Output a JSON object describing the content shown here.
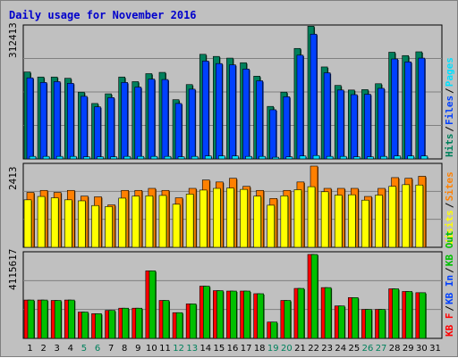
{
  "colors": {
    "background": "#c0c0c0",
    "title": "#0000cc",
    "hits": "#00805c",
    "files": "#0040ff",
    "pages": "#00e0ff",
    "visits": "#ffff00",
    "sites": "#ff8000",
    "kb_in": "#00c000",
    "kb_out": "#ff0000",
    "day_weekday": "#000000",
    "day_weekend": "#00805c"
  },
  "chart_data": {
    "type": "bar",
    "title": "Daily usage for November 2016",
    "categories": [
      "1",
      "2",
      "3",
      "4",
      "5",
      "6",
      "7",
      "8",
      "9",
      "10",
      "11",
      "12",
      "13",
      "14",
      "15",
      "16",
      "17",
      "18",
      "19",
      "20",
      "21",
      "22",
      "23",
      "24",
      "25",
      "26",
      "27",
      "28",
      "29",
      "30",
      "31"
    ],
    "weekend_days": [
      "5",
      "6",
      "12",
      "13",
      "19",
      "20",
      "26",
      "27"
    ],
    "panels": [
      {
        "ymax_label": "312413",
        "ymax": 312413,
        "legend": [
          {
            "label": "Hits",
            "color": "#00805c"
          },
          {
            "label": "/",
            "color": "#000000"
          },
          {
            "label": "Files",
            "color": "#0040ff"
          },
          {
            "label": "/",
            "color": "#000000"
          },
          {
            "label": "Pages",
            "color": "#00e0ff"
          }
        ],
        "series": [
          {
            "name": "Hits",
            "color": "#00805c",
            "values": [
              207000,
              195000,
              195000,
              192000,
              159000,
              132000,
              155000,
              195000,
              184000,
              203000,
              206000,
              141000,
              177000,
              249000,
              244000,
              240000,
              229000,
              197000,
              125000,
              159000,
              263000,
              316000,
              219000,
              175000,
              164000,
              165000,
              179000,
              254000,
              246000,
              255000,
              0
            ]
          },
          {
            "name": "Files",
            "color": "#0040ff",
            "values": [
              193000,
              182000,
              184000,
              180000,
              149000,
              124000,
              146000,
              182000,
              171000,
              190000,
              189000,
              132000,
              166000,
              233000,
              227000,
              224000,
              214000,
              186000,
              117000,
              148000,
              247000,
              297000,
              205000,
              164000,
              153000,
              154000,
              168000,
              238000,
              231000,
              240000,
              0
            ]
          },
          {
            "name": "Pages",
            "color": "#00e0ff",
            "values": [
              6000,
              6000,
              6000,
              6000,
              5000,
              5000,
              5000,
              6000,
              6000,
              6000,
              6000,
              5000,
              6000,
              7000,
              7000,
              7000,
              6000,
              6000,
              4000,
              5000,
              7000,
              8000,
              6000,
              6000,
              5000,
              5000,
              6000,
              7000,
              7000,
              7000,
              0
            ]
          }
        ]
      },
      {
        "ymax_label": "2413",
        "ymax": 2413,
        "legend": [
          {
            "label": "Visits",
            "color": "#ffff00"
          },
          {
            "label": "/",
            "color": "#000000"
          },
          {
            "label": "Sites",
            "color": "#ff8000"
          }
        ],
        "series": [
          {
            "name": "Sites",
            "color": "#ff8000",
            "values": [
              1630,
              1690,
              1630,
              1690,
              1520,
              1500,
              1260,
              1690,
              1690,
              1750,
              1690,
              1470,
              1750,
              2000,
              1940,
              2050,
              1810,
              1690,
              1450,
              1690,
              1940,
              2413,
              1750,
              1750,
              1750,
              1510,
              1750,
              2070,
              2050,
              2110,
              0
            ]
          },
          {
            "name": "Visits",
            "color": "#ffff00",
            "values": [
              1410,
              1510,
              1470,
              1410,
              1380,
              1240,
              1210,
              1460,
              1520,
              1530,
              1540,
              1280,
              1580,
              1700,
              1750,
              1760,
              1720,
              1520,
              1250,
              1530,
              1710,
              1800,
              1650,
              1550,
              1560,
              1400,
              1550,
              1810,
              1860,
              1850,
              0
            ]
          }
        ]
      },
      {
        "ymax_label": "4115617",
        "ymax": 4115617,
        "legend": [
          {
            "label": "KB F",
            "color": "#ff0000"
          },
          {
            "label": "/",
            "color": "#000000"
          },
          {
            "label": "KB In",
            "color": "#0040ff"
          },
          {
            "label": "/",
            "color": "#000000"
          },
          {
            "label": "KB Out",
            "color": "#00c000"
          }
        ],
        "series": [
          {
            "name": "KB F",
            "color": "#ff0000",
            "values": [
              1880000,
              1880000,
              1860000,
              1880000,
              1290000,
              1210000,
              1370000,
              1480000,
              1480000,
              3310000,
              1860000,
              1260000,
              1690000,
              2560000,
              2340000,
              2320000,
              2320000,
              2190000,
              800000,
              1860000,
              2450000,
              4115617,
              2490000,
              1590000,
              2000000,
              1420000,
              1420000,
              2430000,
              2300000,
              2240000,
              0
            ]
          },
          {
            "name": "KB Out",
            "color": "#00c000",
            "values": [
              1880000,
              1880000,
              1860000,
              1880000,
              1290000,
              1210000,
              1370000,
              1480000,
              1480000,
              3310000,
              1860000,
              1260000,
              1690000,
              2560000,
              2340000,
              2320000,
              2320000,
              2190000,
              800000,
              1860000,
              2450000,
              4115617,
              2490000,
              1590000,
              2000000,
              1420000,
              1420000,
              2430000,
              2300000,
              2240000,
              0
            ]
          }
        ]
      }
    ]
  }
}
